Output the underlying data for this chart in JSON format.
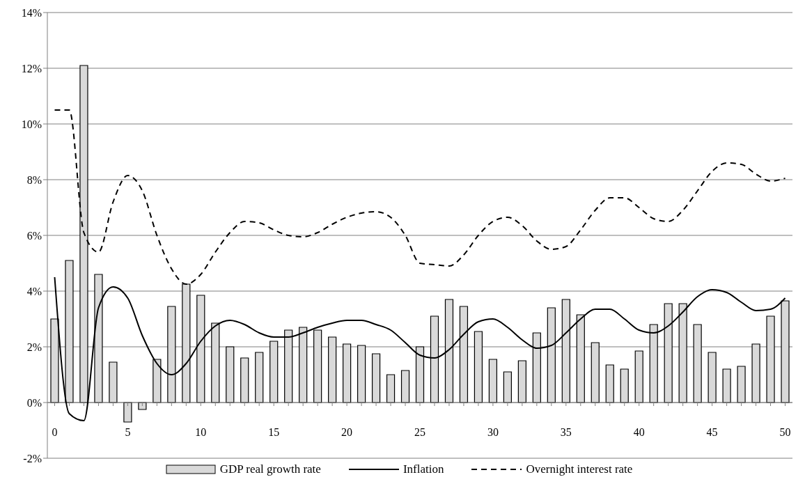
{
  "chart_data": {
    "type": "bar",
    "categories": [
      "0",
      null,
      null,
      null,
      null,
      "5",
      null,
      null,
      null,
      null,
      "10",
      null,
      null,
      null,
      null,
      "15",
      null,
      null,
      null,
      null,
      "20",
      null,
      null,
      null,
      null,
      "25",
      null,
      null,
      null,
      null,
      "30",
      null,
      null,
      null,
      null,
      "35",
      null,
      null,
      null,
      null,
      "40",
      null,
      null,
      null,
      null,
      "45",
      null,
      null,
      null,
      null,
      "50"
    ],
    "series": [
      {
        "name": "GDP real growth rate",
        "color": "#d9d9d9",
        "values": [
          3.0,
          5.1,
          12.1,
          4.6,
          1.45,
          -0.7,
          -0.25,
          1.55,
          3.45,
          4.25,
          3.85,
          2.85,
          2.0,
          1.6,
          1.8,
          2.2,
          2.6,
          2.7,
          2.6,
          2.35,
          2.1,
          2.05,
          1.75,
          1.0,
          1.15,
          2.0,
          3.1,
          3.7,
          3.45,
          2.55,
          1.55,
          1.1,
          1.5,
          2.5,
          3.4,
          3.7,
          3.15,
          2.15,
          1.35,
          1.2,
          1.85,
          2.8,
          3.55,
          3.55,
          2.8,
          1.8,
          1.2,
          1.3,
          2.1,
          3.1,
          3.65
        ]
      },
      {
        "name": "Inflation",
        "type": "line",
        "color": "#000000",
        "line_style": "solid",
        "values": [
          4.5,
          -0.4,
          -0.65,
          3.4,
          4.15,
          3.75,
          2.4,
          1.4,
          1.0,
          1.4,
          2.2,
          2.75,
          2.95,
          2.8,
          2.5,
          2.35,
          2.35,
          2.5,
          2.7,
          2.85,
          2.95,
          2.95,
          2.8,
          2.6,
          2.15,
          1.7,
          1.6,
          1.9,
          2.45,
          2.9,
          3.0,
          2.7,
          2.25,
          1.95,
          2.05,
          2.5,
          3.0,
          3.35,
          3.35,
          3.0,
          2.6,
          2.5,
          2.75,
          3.25,
          3.8,
          4.05,
          3.95,
          3.6,
          3.3,
          3.35,
          3.75
        ]
      },
      {
        "name": "Overnight interest rate",
        "type": "line",
        "color": "#000000",
        "line_style": "dashed",
        "values": [
          10.5,
          10.5,
          6.1,
          5.4,
          7.2,
          8.15,
          7.6,
          6.0,
          4.8,
          4.25,
          4.6,
          5.4,
          6.1,
          6.5,
          6.45,
          6.2,
          6.0,
          5.95,
          6.1,
          6.4,
          6.65,
          6.8,
          6.85,
          6.65,
          6.0,
          5.0,
          4.95,
          4.9,
          5.3,
          6.0,
          6.5,
          6.65,
          6.35,
          5.8,
          5.5,
          5.6,
          6.2,
          6.9,
          7.35,
          7.35,
          7.0,
          6.6,
          6.5,
          6.9,
          7.6,
          8.3,
          8.6,
          8.55,
          8.2,
          7.95,
          8.05
        ]
      }
    ],
    "ylim": [
      -2,
      14
    ],
    "yticks": [
      {
        "value": -2,
        "label": "-2%"
      },
      {
        "value": 0,
        "label": "0%"
      },
      {
        "value": 2,
        "label": "2%"
      },
      {
        "value": 4,
        "label": "4%"
      },
      {
        "value": 6,
        "label": "6%"
      },
      {
        "value": 8,
        "label": "8%"
      },
      {
        "value": 10,
        "label": "10%"
      },
      {
        "value": 12,
        "label": "12%"
      },
      {
        "value": 14,
        "label": "14%"
      }
    ],
    "grid": "y",
    "legend": "bottom",
    "marker": "none"
  }
}
